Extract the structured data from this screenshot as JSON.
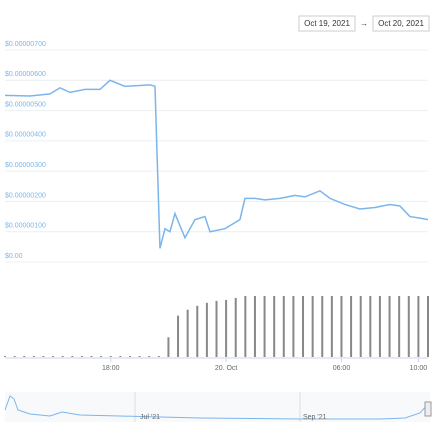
{
  "date_range": {
    "from": "Oct 19, 2021",
    "separator": "→",
    "to": "Oct 20, 2021"
  },
  "navigator": {
    "labels": [
      "Jul '21",
      "Sep '21"
    ]
  },
  "chart_data": [
    {
      "type": "line",
      "color": "#7cb5ec",
      "grid": true,
      "x": [
        12.5,
        13.8,
        14.84,
        15.36,
        15.88,
        16.66,
        17.44,
        17.96,
        18.74,
        20.04,
        20.3,
        20.56,
        20.82,
        21.08,
        21.34,
        21.86,
        22.38,
        22.9,
        23.16,
        23.94,
        24.46,
        24.72,
        24.98,
        25.5,
        26.02,
        26.8,
        27.58,
        28.1,
        28.88,
        29.4,
        30.18,
        30.96,
        31.74,
        32.52,
        33.04,
        33.56,
        34.08,
        34.5
      ],
      "values": [
        5.5e-06,
        5.48e-06,
        5.55e-06,
        5.75e-06,
        5.6e-06,
        5.7e-06,
        5.7e-06,
        6e-06,
        5.8e-06,
        5.85e-06,
        5.8e-06,
        4.5e-07,
        1.1e-06,
        1e-06,
        1.6e-06,
        8e-07,
        1.4e-06,
        1.5e-06,
        1e-06,
        1.1e-06,
        1.3e-06,
        1.4e-06,
        2.1e-06,
        2.1e-06,
        2.05e-06,
        2.1e-06,
        2.2e-06,
        2.15e-06,
        2.35e-06,
        2.1e-06,
        1.9e-06,
        1.75e-06,
        1.8e-06,
        1.9e-06,
        1.85e-06,
        1.5e-06,
        1.45e-06,
        1.4e-06
      ],
      "xlim": [
        12.5,
        34.5
      ],
      "ylim": [
        0,
        7e-06
      ],
      "yticks": [
        {
          "value": 0,
          "label": "$0.00"
        },
        {
          "value": 1e-06,
          "label": "$0.00000100"
        },
        {
          "value": 2e-06,
          "label": "$0.00000200"
        },
        {
          "value": 3e-06,
          "label": "$0.00000300"
        },
        {
          "value": 4e-06,
          "label": "$0.00000400"
        },
        {
          "value": 5e-06,
          "label": "$0.00000500"
        },
        {
          "value": 6e-06,
          "label": "$0.00000600"
        },
        {
          "value": 7e-06,
          "label": "$0.00000700"
        }
      ]
    },
    {
      "type": "bar",
      "color": "#888888",
      "x": [
        12.5,
        13,
        13.5,
        14,
        14.5,
        15,
        15.5,
        16,
        16.5,
        17,
        17.5,
        18,
        18.5,
        19,
        19.5,
        20,
        20.5,
        21,
        21.5,
        22,
        22.5,
        23,
        23.5,
        24,
        24.5,
        25,
        25.5,
        26,
        26.5,
        27,
        27.5,
        28,
        28.5,
        29,
        29.5,
        30,
        30.5,
        31,
        31.5,
        32,
        32.5,
        33,
        33.5,
        34,
        34.5
      ],
      "values": [
        1,
        1,
        1,
        1,
        1,
        1,
        1,
        1,
        1,
        1,
        1,
        1,
        1,
        1,
        1,
        1,
        1,
        20,
        42,
        48,
        52,
        55,
        57,
        58,
        60,
        62,
        62,
        62,
        62,
        62,
        62,
        62,
        62,
        62,
        62,
        62,
        62,
        62,
        62,
        62,
        62,
        62,
        62,
        62,
        62
      ],
      "xlim": [
        12.5,
        34.5
      ],
      "ylim": [
        0,
        65
      ],
      "xticks": [
        {
          "value": 18,
          "label": "18:00"
        },
        {
          "value": 24,
          "label": "20. Oct"
        },
        {
          "value": 30,
          "label": "06:00"
        },
        {
          "value": 34,
          "label": "10:00"
        }
      ]
    }
  ]
}
